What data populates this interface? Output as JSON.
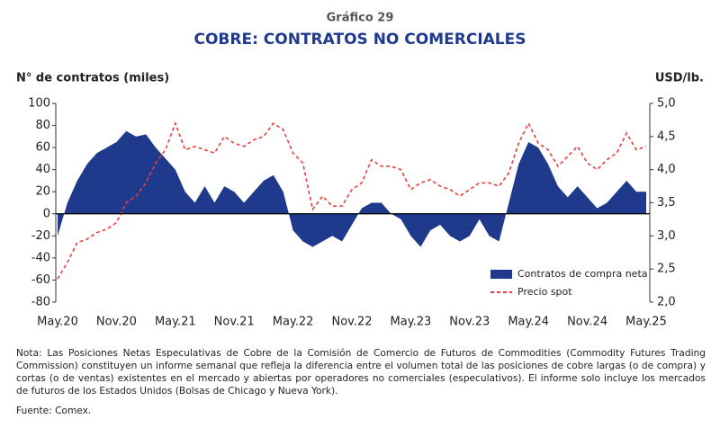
{
  "chart_data": {
    "type": "area",
    "label": "Gráfico 29",
    "title": "COBRE: CONTRATOS NO COMERCIALES",
    "y_label": "N° de contratos (miles)",
    "y2_label": "USD/lb.",
    "categories": [
      "May.20",
      null,
      null,
      null,
      null,
      null,
      "Nov.20",
      null,
      null,
      null,
      null,
      null,
      "May.21",
      null,
      null,
      null,
      null,
      null,
      "Nov.21",
      null,
      null,
      null,
      null,
      null,
      "May.22",
      null,
      null,
      null,
      null,
      null,
      "Nov.22",
      null,
      null,
      null,
      null,
      null,
      "May.23",
      null,
      null,
      null,
      null,
      null,
      "Nov.23",
      null,
      null,
      null,
      null,
      null,
      "May.24",
      null,
      null,
      null,
      null,
      null,
      "Nov.24",
      null,
      null,
      null,
      null,
      null,
      "May.25"
    ],
    "series": [
      {
        "name": "Contratos de compra neta",
        "type": "area",
        "color": "#1f3a8c",
        "values": [
          -20,
          10,
          30,
          45,
          55,
          60,
          65,
          75,
          70,
          72,
          60,
          50,
          40,
          20,
          10,
          25,
          10,
          25,
          20,
          10,
          20,
          30,
          35,
          20,
          -15,
          -25,
          -30,
          -25,
          -20,
          -25,
          -10,
          5,
          10,
          10,
          0,
          -5,
          -20,
          -30,
          -15,
          -10,
          -20,
          -25,
          -20,
          -5,
          -20,
          -25,
          10,
          45,
          65,
          60,
          45,
          25,
          15,
          25,
          15,
          5,
          10,
          20,
          30,
          20,
          20
        ]
      },
      {
        "name": "Precio spot",
        "type": "line",
        "axis": "y2",
        "color": "#e8413c",
        "dashed": true,
        "values": [
          2.35,
          2.6,
          2.9,
          2.95,
          3.05,
          3.1,
          3.2,
          3.5,
          3.6,
          3.8,
          4.1,
          4.3,
          4.7,
          4.3,
          4.35,
          4.3,
          4.25,
          4.5,
          4.4,
          4.35,
          4.45,
          4.5,
          4.7,
          4.6,
          4.25,
          4.1,
          3.4,
          3.6,
          3.45,
          3.45,
          3.7,
          3.8,
          4.15,
          4.05,
          4.05,
          4.0,
          3.7,
          3.8,
          3.85,
          3.75,
          3.7,
          3.6,
          3.7,
          3.8,
          3.8,
          3.75,
          3.95,
          4.4,
          4.7,
          4.4,
          4.3,
          4.05,
          4.2,
          4.35,
          4.1,
          4.0,
          4.15,
          4.25,
          4.55,
          4.3,
          4.35
        ]
      }
    ],
    "ylim": [
      -80,
      100
    ],
    "yticks": [
      -80,
      -60,
      -40,
      -20,
      0,
      20,
      40,
      60,
      80,
      100
    ],
    "y2lim": [
      2,
      5
    ],
    "y2ticks": [
      {
        "value": 2,
        "label": "2,0"
      },
      {
        "value": 2.5,
        "label": "2,5"
      },
      {
        "value": 3,
        "label": "3,0"
      },
      {
        "value": 3.5,
        "label": "3,5"
      },
      {
        "value": 4,
        "label": "4,0"
      },
      {
        "value": 4.5,
        "label": "4,5"
      },
      {
        "value": 5,
        "label": "5,0"
      }
    ],
    "legend": "bottom-right",
    "note": "Nota: Las Posiciones Netas Especulativas de Cobre de la Comisión de Comercio de Futuros de Commodities (Commodity Futures Trading Commission) constituyen un informe semanal que refleja la diferencia entre el volumen total de las posiciones de cobre largas (o de compra) y cortas (o de ventas) existentes en el mercado y abiertas por operadores no comerciales (especulativos). El informe solo incluye los mercados de futuros de los Estados Unidos (Bolsas de Chicago y Nueva York).",
    "source": "Fuente: Comex."
  }
}
